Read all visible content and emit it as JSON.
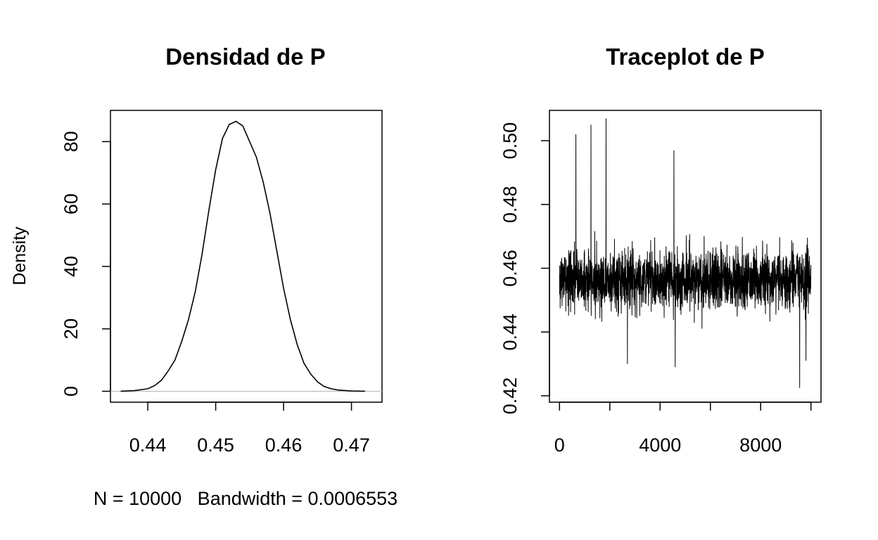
{
  "chart_data": [
    {
      "type": "line",
      "title": "Densidad de P",
      "xlabel": "N = 10000   Bandwidth = 0.0006553",
      "ylabel": "Density",
      "xlim": [
        0.4345,
        0.4745
      ],
      "ylim": [
        -3.5,
        90
      ],
      "xticks": [
        0.44,
        0.45,
        0.46,
        0.47
      ],
      "xtick_labels": [
        "0.44",
        "0.45",
        "0.46",
        "0.47"
      ],
      "yticks": [
        0,
        20,
        40,
        60,
        80
      ],
      "ytick_labels": [
        "0",
        "20",
        "40",
        "60",
        "80"
      ],
      "grid": false,
      "baseline": 0,
      "series": [
        {
          "x": [
            0.436,
            0.438,
            0.44,
            0.441,
            0.442,
            0.443,
            0.444,
            0.445,
            0.446,
            0.447,
            0.448,
            0.449,
            0.45,
            0.451,
            0.452,
            0.453,
            0.454,
            0.455,
            0.456,
            0.457,
            0.458,
            0.459,
            0.46,
            0.461,
            0.462,
            0.463,
            0.464,
            0.465,
            0.466,
            0.467,
            0.468,
            0.47,
            0.472
          ],
          "y": [
            0,
            0.2,
            0.8,
            1.8,
            3.5,
            6.5,
            10,
            16,
            23,
            32,
            44,
            58,
            71,
            81,
            85.5,
            86.5,
            85,
            80,
            75,
            67,
            57,
            45,
            33,
            23,
            15,
            9,
            5.5,
            3,
            1.5,
            0.8,
            0.4,
            0.1,
            0
          ]
        }
      ]
    },
    {
      "type": "line",
      "title": "Traceplot de P",
      "xlim": [
        -400,
        10400
      ],
      "ylim": [
        0.418,
        0.5095
      ],
      "xticks": [
        0,
        2000,
        4000,
        6000,
        8000,
        10000
      ],
      "xtick_labels": [
        "0",
        "",
        "4000",
        "",
        "8000",
        ""
      ],
      "yticks": [
        0.42,
        0.44,
        0.46,
        0.48,
        0.5
      ],
      "ytick_labels": [
        "0.42",
        "0.44",
        "0.46",
        "0.48",
        "0.50"
      ],
      "grid": false,
      "trace": {
        "n": 10000,
        "mean": 0.4565,
        "sd": 0.0047,
        "notable_points": [
          {
            "x": 650,
            "y": 0.502
          },
          {
            "x": 1250,
            "y": 0.505
          },
          {
            "x": 1850,
            "y": 0.507
          },
          {
            "x": 2700,
            "y": 0.43
          },
          {
            "x": 4550,
            "y": 0.497
          },
          {
            "x": 4600,
            "y": 0.429
          },
          {
            "x": 9550,
            "y": 0.4225
          },
          {
            "x": 9800,
            "y": 0.431
          }
        ]
      }
    }
  ]
}
